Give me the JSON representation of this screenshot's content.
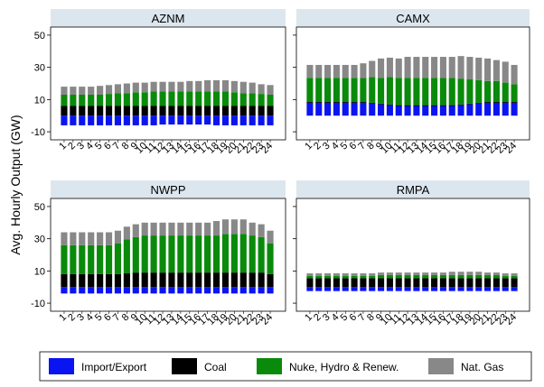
{
  "chart_data": {
    "type": "bar",
    "stacked": true,
    "ylabel": "Avg. Hourly Output (GW)",
    "xlabel": "",
    "ylim": [
      -15,
      55
    ],
    "yticks": [
      -10,
      10,
      30,
      50
    ],
    "categories": [
      "1",
      "2",
      "3",
      "4",
      "5",
      "6",
      "7",
      "8",
      "9",
      "10",
      "11",
      "12",
      "13",
      "14",
      "15",
      "16",
      "17",
      "18",
      "19",
      "20",
      "21",
      "22",
      "23",
      "24"
    ],
    "series_names": [
      "Import/Export",
      "Coal",
      "Nuke, Hydro & Renew.",
      "Nat. Gas"
    ],
    "colors": {
      "Import/Export": "#0a14f0",
      "Coal": "#000000",
      "Nuke, Hydro & Renew.": "#0a8a0a",
      "Nat. Gas": "#888888"
    },
    "legend_position": "bottom",
    "panels": [
      {
        "title": "AZNM",
        "series": [
          {
            "name": "Import/Export",
            "values": [
              -6,
              -6,
              -6,
              -6,
              -6,
              -6,
              -6,
              -6,
              -6,
              -6,
              -6,
              -5.5,
              -5.5,
              -5.5,
              -5.5,
              -5.5,
              -5.5,
              -6,
              -6,
              -6,
              -6,
              -6,
              -6,
              -6
            ]
          },
          {
            "name": "Coal",
            "values": [
              6,
              6,
              6,
              6,
              6,
              6,
              6,
              6,
              6,
              6,
              6,
              6,
              6,
              6,
              6,
              6,
              6,
              6,
              6,
              6,
              6,
              6,
              6,
              6
            ]
          },
          {
            "name": "Nuke, Hydro & Renew.",
            "values": [
              7,
              7,
              7,
              7,
              7,
              7.5,
              8,
              8,
              8.5,
              8.5,
              9,
              9,
              9,
              9,
              9,
              9,
              9,
              9,
              9,
              8.5,
              8,
              8,
              7.5,
              7
            ]
          },
          {
            "name": "Nat. Gas",
            "values": [
              5,
              5,
              5,
              5,
              5.5,
              5.5,
              5.5,
              6,
              6,
              6,
              6,
              6,
              6,
              6,
              6.5,
              6.5,
              7,
              7,
              7,
              7,
              7,
              6.5,
              6,
              6
            ]
          }
        ]
      },
      {
        "title": "CAMX",
        "series": [
          {
            "name": "Import/Export",
            "values": [
              8,
              8,
              8,
              8,
              8,
              8,
              8,
              7.5,
              7,
              6.5,
              6,
              6,
              6,
              6,
              6,
              6,
              6,
              6.5,
              7,
              7.5,
              8,
              8,
              8,
              8
            ]
          },
          {
            "name": "Coal",
            "values": [
              0.5,
              0.5,
              0.5,
              0.5,
              0.5,
              0.5,
              0.5,
              0.5,
              0.5,
              0.5,
              0.5,
              0.5,
              0.5,
              0.5,
              0.5,
              0.5,
              0.5,
              0.5,
              0.5,
              0.5,
              0.5,
              0.5,
              0.5,
              0.5
            ]
          },
          {
            "name": "Nuke, Hydro & Renew.",
            "values": [
              15,
              15,
              15,
              15,
              15,
              15,
              15,
              16,
              16,
              17,
              17,
              17,
              17,
              17,
              17,
              17,
              17,
              16,
              15,
              14,
              13,
              13,
              12,
              11
            ]
          },
          {
            "name": "Nat. Gas",
            "values": [
              8,
              8,
              8,
              8,
              8,
              8,
              9,
              10,
              12,
              12,
              12,
              13,
              13,
              13,
              13,
              13,
              13,
              14,
              14,
              14,
              14,
              13,
              13,
              12
            ]
          }
        ]
      },
      {
        "title": "NWPP",
        "series": [
          {
            "name": "Import/Export",
            "values": [
              -4,
              -4,
              -4,
              -4,
              -4,
              -4,
              -4,
              -4,
              -4,
              -4,
              -4,
              -4,
              -4,
              -4,
              -4,
              -4,
              -4,
              -4,
              -4,
              -4,
              -4,
              -4,
              -4,
              -4
            ]
          },
          {
            "name": "Coal",
            "values": [
              8,
              8,
              8,
              8,
              8,
              8,
              8,
              8.5,
              9,
              9,
              9,
              9,
              9,
              9,
              9,
              9,
              9,
              9,
              9,
              9,
              9,
              9,
              9,
              8
            ]
          },
          {
            "name": "Nuke, Hydro & Renew.",
            "values": [
              18,
              18,
              18,
              18,
              18,
              18,
              19,
              21,
              22,
              23,
              23,
              23,
              23,
              23,
              23,
              23,
              23,
              23,
              24,
              24,
              24,
              23,
              22,
              19
            ]
          },
          {
            "name": "Nat. Gas",
            "values": [
              8,
              8,
              8,
              8,
              8,
              8,
              8,
              8,
              8,
              8,
              8,
              8,
              8,
              8,
              8,
              8,
              8,
              9,
              9,
              9,
              9,
              8,
              8,
              8
            ]
          }
        ]
      },
      {
        "title": "RMPA",
        "series": [
          {
            "name": "Import/Export",
            "values": [
              -2.5,
              -2.5,
              -2.5,
              -2.5,
              -2.5,
              -2.5,
              -2.5,
              -2.5,
              -2.5,
              -2.5,
              -2.5,
              -2.5,
              -2.5,
              -2.5,
              -2.5,
              -2.5,
              -2.5,
              -2.5,
              -2.5,
              -2.5,
              -2.5,
              -2.5,
              -2.5,
              -2.5
            ]
          },
          {
            "name": "Coal",
            "values": [
              5.5,
              5.5,
              5.5,
              5.5,
              5.5,
              5.5,
              5.5,
              5.5,
              5.5,
              5.5,
              5.5,
              5.5,
              5.5,
              5.5,
              5.5,
              5.5,
              5.5,
              5.5,
              5.5,
              5.5,
              5.5,
              5.5,
              5.5,
              5.5
            ]
          },
          {
            "name": "Nuke, Hydro & Renew.",
            "values": [
              1.5,
              1.5,
              1.5,
              1.5,
              1.5,
              1.5,
              1.5,
              1.5,
              2,
              2,
              2,
              2,
              2,
              2,
              2,
              2,
              2,
              2,
              2,
              2,
              2,
              2,
              1.5,
              1.5
            ]
          },
          {
            "name": "Nat. Gas",
            "values": [
              1.5,
              1.5,
              1.5,
              1.5,
              1.5,
              1.5,
              1.5,
              1.5,
              1.5,
              1.5,
              1.5,
              1.5,
              1.5,
              1.5,
              1.5,
              1.5,
              2,
              2,
              2,
              2,
              1.5,
              1.5,
              1.5,
              1.5
            ]
          }
        ]
      }
    ]
  }
}
